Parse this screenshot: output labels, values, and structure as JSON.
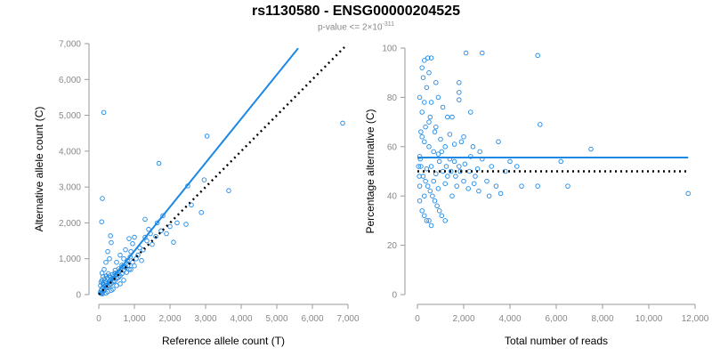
{
  "title": "rs1130580 - ENSG00000204525",
  "subtitle": {
    "prefix": "p-value <= 2×10",
    "exponent": "-311"
  },
  "colors": {
    "points": "#1e88e5",
    "fit_line": "#1e88e5",
    "reference_line": "#000000",
    "axes": "#999999"
  },
  "chart_data": [
    {
      "type": "scatter",
      "title": "",
      "xlabel": "Reference allele count (T)",
      "ylabel": "Alternative allele count (C)",
      "xlim": [
        0,
        7000
      ],
      "ylim": [
        0,
        7000
      ],
      "xticks": [
        0,
        1000,
        2000,
        3000,
        4000,
        5000,
        6000,
        7000
      ],
      "yticks": [
        0,
        1000,
        2000,
        3000,
        4000,
        5000,
        6000,
        7000
      ],
      "xtick_labels": [
        "0",
        "1,000",
        "2,000",
        "3,000",
        "4,000",
        "5,000",
        "6,000",
        "7,000"
      ],
      "ytick_labels": [
        "0",
        "1,000",
        "2,000",
        "3,000",
        "4,000",
        "5,000",
        "6,000",
        "7,000"
      ],
      "series": [
        {
          "name": "samples",
          "points": [
            [
              140,
              5080
            ],
            [
              100,
              2680
            ],
            [
              80,
              2030
            ],
            [
              330,
              1640
            ],
            [
              6850,
              4780
            ],
            [
              3040,
              4420
            ],
            [
              1690,
              3660
            ],
            [
              2960,
              3200
            ],
            [
              3650,
              2900
            ],
            [
              2500,
              3030
            ],
            [
              2880,
              2290
            ],
            [
              2450,
              1960
            ],
            [
              2100,
              1460
            ],
            [
              1800,
              2200
            ],
            [
              1640,
              2000
            ],
            [
              1400,
              1820
            ],
            [
              1300,
              2100
            ],
            [
              1350,
              1500
            ],
            [
              1000,
              1600
            ],
            [
              950,
              1420
            ],
            [
              850,
              1560
            ],
            [
              1150,
              1300
            ],
            [
              1250,
              1250
            ],
            [
              1100,
              1100
            ],
            [
              900,
              1200
            ],
            [
              800,
              950
            ],
            [
              700,
              1000
            ],
            [
              750,
              1250
            ],
            [
              600,
              1100
            ],
            [
              1500,
              1400
            ],
            [
              1600,
              1620
            ],
            [
              1750,
              1780
            ],
            [
              2000,
              1900
            ],
            [
              1200,
              950
            ],
            [
              1000,
              800
            ],
            [
              900,
              700
            ],
            [
              650,
              820
            ],
            [
              500,
              900
            ],
            [
              450,
              600
            ],
            [
              350,
              1450
            ],
            [
              250,
              1200
            ],
            [
              200,
              900
            ],
            [
              150,
              700
            ],
            [
              120,
              500
            ],
            [
              300,
              1000
            ],
            [
              60,
              100
            ],
            [
              80,
              150
            ],
            [
              100,
              60
            ],
            [
              120,
              200
            ],
            [
              150,
              120
            ],
            [
              180,
              250
            ],
            [
              200,
              180
            ],
            [
              220,
              300
            ],
            [
              250,
              220
            ],
            [
              280,
              350
            ],
            [
              300,
              260
            ],
            [
              320,
              400
            ],
            [
              350,
              300
            ],
            [
              380,
              450
            ],
            [
              400,
              350
            ],
            [
              420,
              500
            ],
            [
              450,
              380
            ],
            [
              480,
              550
            ],
            [
              500,
              450
            ],
            [
              520,
              600
            ],
            [
              550,
              480
            ],
            [
              580,
              650
            ],
            [
              600,
              520
            ],
            [
              620,
              700
            ],
            [
              650,
              580
            ],
            [
              700,
              680
            ],
            [
              750,
              760
            ],
            [
              780,
              620
            ],
            [
              820,
              820
            ],
            [
              850,
              700
            ],
            [
              90,
              400
            ],
            [
              110,
              320
            ],
            [
              130,
              280
            ],
            [
              160,
              440
            ],
            [
              190,
              360
            ],
            [
              210,
              520
            ],
            [
              240,
              460
            ],
            [
              270,
              580
            ],
            [
              40,
              50
            ],
            [
              70,
              30
            ],
            [
              100,
              20
            ],
            [
              50,
              250
            ],
            [
              60,
              350
            ],
            [
              90,
              600
            ],
            [
              400,
              150
            ],
            [
              500,
              250
            ],
            [
              600,
              300
            ],
            [
              700,
              400
            ],
            [
              250,
              80
            ],
            [
              350,
              120
            ],
            [
              1050,
              1000
            ],
            [
              950,
              900
            ],
            [
              880,
              1050
            ],
            [
              780,
              870
            ],
            [
              680,
              790
            ],
            [
              560,
              720
            ],
            [
              460,
              680
            ],
            [
              380,
              560
            ],
            [
              300,
              520
            ],
            [
              1450,
              1700
            ],
            [
              1300,
              1600
            ],
            [
              2200,
              2000
            ],
            [
              2600,
              2500
            ],
            [
              1900,
              1700
            ],
            [
              200,
              40
            ]
          ]
        },
        {
          "name": "fit",
          "kind": "line",
          "points": [
            [
              100,
              110
            ],
            [
              5600,
              6870
            ]
          ]
        },
        {
          "name": "expected",
          "kind": "dotted-line",
          "points": [
            [
              0,
              0
            ],
            [
              6900,
              6900
            ]
          ]
        }
      ]
    },
    {
      "type": "scatter",
      "title": "",
      "xlabel": "Total number of reads",
      "ylabel": "Percentage alternative (C)",
      "xlim": [
        0,
        12000
      ],
      "ylim": [
        0,
        100
      ],
      "xticks": [
        0,
        2000,
        4000,
        6000,
        8000,
        10000,
        12000
      ],
      "yticks": [
        0,
        20,
        40,
        60,
        80,
        100
      ],
      "xtick_labels": [
        "0",
        "2,000",
        "4,000",
        "6,000",
        "8,000",
        "10,000",
        "12,000"
      ],
      "ytick_labels": [
        "0",
        "20",
        "40",
        "60",
        "80",
        "100"
      ],
      "series": [
        {
          "name": "samples",
          "points": [
            [
              200,
              92
            ],
            [
              300,
              95
            ],
            [
              450,
              96
            ],
            [
              600,
              96
            ],
            [
              250,
              88
            ],
            [
              500,
              90
            ],
            [
              400,
              84
            ],
            [
              800,
              86
            ],
            [
              1800,
              86
            ],
            [
              1800,
              82
            ],
            [
              2100,
              98
            ],
            [
              2800,
              98
            ],
            [
              5200,
              97
            ],
            [
              100,
              80
            ],
            [
              300,
              78
            ],
            [
              600,
              78
            ],
            [
              900,
              80
            ],
            [
              1100,
              76
            ],
            [
              1300,
              72
            ],
            [
              1800,
              79
            ],
            [
              200,
              74
            ],
            [
              500,
              70
            ],
            [
              800,
              68
            ],
            [
              1500,
              72
            ],
            [
              2300,
              74
            ],
            [
              3500,
              62
            ],
            [
              5300,
              69
            ],
            [
              7500,
              59
            ],
            [
              6200,
              54
            ],
            [
              4000,
              54
            ],
            [
              4500,
              44
            ],
            [
              5200,
              44
            ],
            [
              6500,
              44
            ],
            [
              11700,
              41
            ],
            [
              3600,
              41
            ],
            [
              2600,
              51
            ],
            [
              2800,
              55
            ],
            [
              2400,
              60
            ],
            [
              2000,
              64
            ],
            [
              1900,
              62
            ],
            [
              1600,
              61
            ],
            [
              1400,
              65
            ],
            [
              1200,
              60
            ],
            [
              1000,
              63
            ],
            [
              900,
              57
            ],
            [
              700,
              58
            ],
            [
              500,
              60
            ],
            [
              300,
              62
            ],
            [
              200,
              64
            ],
            [
              100,
              56
            ],
            [
              150,
              52
            ],
            [
              250,
              48
            ],
            [
              350,
              46
            ],
            [
              450,
              44
            ],
            [
              550,
              42
            ],
            [
              650,
              40
            ],
            [
              750,
              38
            ],
            [
              850,
              36
            ],
            [
              950,
              34
            ],
            [
              1050,
              32
            ],
            [
              300,
              32
            ],
            [
              400,
              30
            ],
            [
              500,
              30
            ],
            [
              200,
              34
            ],
            [
              600,
              28
            ],
            [
              1200,
              30
            ],
            [
              1500,
              40
            ],
            [
              1700,
              44
            ],
            [
              2000,
              46
            ],
            [
              2200,
              43
            ],
            [
              2500,
              48
            ],
            [
              3000,
              46
            ],
            [
              3200,
              52
            ],
            [
              2700,
              58
            ],
            [
              2300,
              56
            ],
            [
              1100,
              50
            ],
            [
              1300,
              48
            ],
            [
              800,
              49
            ],
            [
              600,
              52
            ],
            [
              400,
              51
            ],
            [
              1400,
              55
            ],
            [
              1600,
              54
            ],
            [
              1800,
              52
            ],
            [
              1200,
              45
            ],
            [
              900,
              43
            ],
            [
              700,
              46
            ],
            [
              300,
              40
            ],
            [
              100,
              44
            ],
            [
              150,
              66
            ],
            [
              350,
              68
            ],
            [
              550,
              72
            ],
            [
              750,
              66
            ],
            [
              950,
              54
            ],
            [
              1050,
              58
            ],
            [
              1250,
              52
            ],
            [
              1450,
              50
            ],
            [
              1650,
              48
            ],
            [
              1850,
              50
            ],
            [
              2050,
              53
            ],
            [
              2250,
              50
            ],
            [
              2450,
              45
            ],
            [
              2650,
              42
            ],
            [
              50,
              52
            ],
            [
              80,
              48
            ],
            [
              120,
              55
            ],
            [
              3800,
              50
            ],
            [
              3400,
              44
            ],
            [
              4300,
              52
            ],
            [
              3100,
              40
            ],
            [
              100,
              38
            ]
          ]
        },
        {
          "name": "fit",
          "kind": "line",
          "points": [
            [
              0,
              55.6
            ],
            [
              11700,
              55.6
            ]
          ]
        },
        {
          "name": "expected",
          "kind": "dotted-line",
          "points": [
            [
              0,
              50
            ],
            [
              11700,
              50
            ]
          ]
        }
      ]
    }
  ]
}
